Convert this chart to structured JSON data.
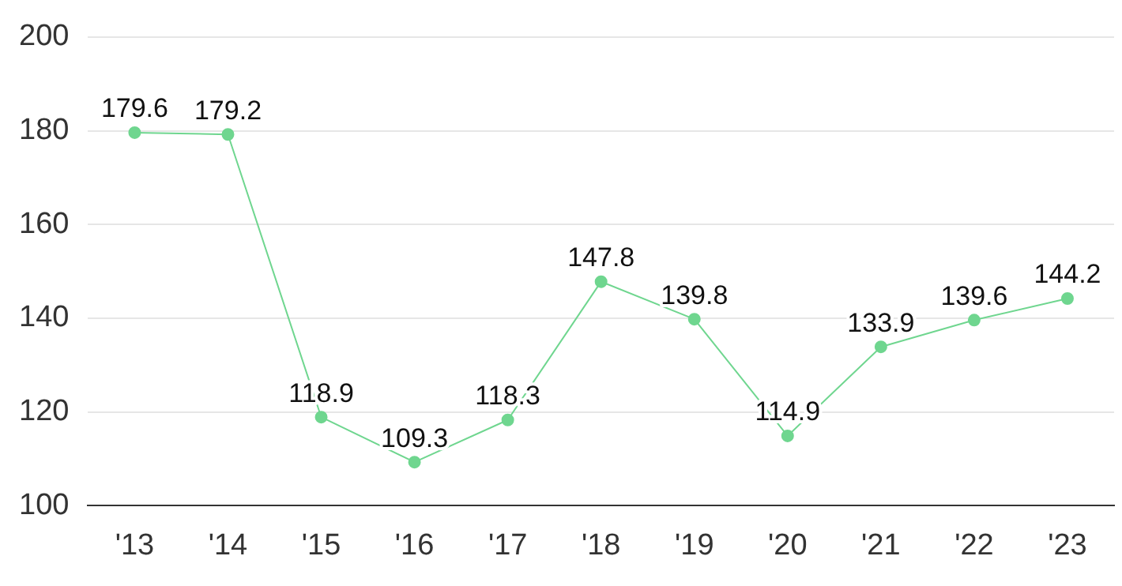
{
  "chart_data": {
    "type": "line",
    "categories": [
      "'13",
      "'14",
      "'15",
      "'16",
      "'17",
      "'18",
      "'19",
      "'20",
      "'21",
      "'22",
      "'23"
    ],
    "series": [
      {
        "color": "#6fd68f",
        "values": [
          179.6,
          179.2,
          118.9,
          109.3,
          118.3,
          147.8,
          139.8,
          114.9,
          133.9,
          139.6,
          144.2
        ]
      }
    ],
    "ylim": [
      100,
      200
    ],
    "yticks": [
      100,
      120,
      140,
      160,
      180,
      200
    ],
    "grid": "y",
    "legend": false,
    "marker": "circle",
    "line_style": "solid",
    "data_labels": true
  }
}
